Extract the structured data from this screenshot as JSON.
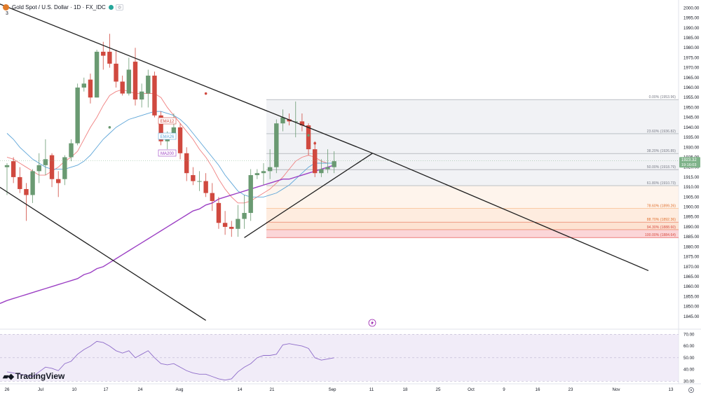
{
  "header": {
    "title": "Gold Spot / U.S. Dollar · 1D · FX_IDC",
    "row2": "3"
  },
  "brand": {
    "name": "TradingView"
  },
  "colors": {
    "up": "#6a9a72",
    "down": "#d0493f",
    "ema12": "#f08080",
    "ema26": "#5da5d8",
    "ma200": "#9c40c4",
    "rsi": "#8e6cc9",
    "trendline": "#1f1f1f",
    "price_tag": "#7fb38a"
  },
  "chart_data": [
    {
      "type": "candlestick",
      "title": "Gold Spot / U.S. Dollar · 1D · FX_IDC",
      "ylim": [
        1840,
        2004
      ],
      "y_ticks": [
        1845,
        1850,
        1855,
        1860,
        1865,
        1870,
        1875,
        1880,
        1885,
        1890,
        1895,
        1900,
        1905,
        1910,
        1915,
        1920,
        1925,
        1930,
        1935,
        1940,
        1945,
        1950,
        1955,
        1960,
        1965,
        1970,
        1975,
        1980,
        1985,
        1990,
        1995,
        2000
      ],
      "y_tick_labels": [
        "1845.00",
        "1850.00",
        "1855.00",
        "1860.00",
        "1865.00",
        "1870.00",
        "1875.00",
        "1880.00",
        "1885.00",
        "1890.00",
        "1895.00",
        "1900.00",
        "1905.00",
        "1910.00",
        "1915.00",
        "1920.00",
        "1925.00",
        "1930.00",
        "1935.00",
        "1940.00",
        "1945.00",
        "1950.00",
        "1955.00",
        "1960.00",
        "1965.00",
        "1970.00",
        "1975.00",
        "1980.00",
        "1985.00",
        "1990.00",
        "1995.00",
        "2000.00"
      ],
      "x_tick_labels": [
        "26",
        "Jul",
        "10",
        "17",
        "24",
        "Aug",
        "14",
        "21",
        "Sep",
        "11",
        "18",
        "25",
        "Oct",
        "9",
        "16",
        "23",
        "Nov",
        "13"
      ],
      "candles": [
        {
          "o": 1920,
          "h": 1922,
          "l": 1906,
          "c": 1921
        },
        {
          "o": 1923,
          "h": 1925,
          "l": 1912,
          "c": 1915
        },
        {
          "o": 1915,
          "h": 1920,
          "l": 1907,
          "c": 1909
        },
        {
          "o": 1909,
          "h": 1912,
          "l": 1893,
          "c": 1906
        },
        {
          "o": 1906,
          "h": 1919,
          "l": 1902,
          "c": 1918
        },
        {
          "o": 1918,
          "h": 1927,
          "l": 1912,
          "c": 1921
        },
        {
          "o": 1921,
          "h": 1934,
          "l": 1916,
          "c": 1924
        },
        {
          "o": 1926,
          "h": 1927,
          "l": 1910,
          "c": 1914
        },
        {
          "o": 1914,
          "h": 1918,
          "l": 1905,
          "c": 1912
        },
        {
          "o": 1914,
          "h": 1926,
          "l": 1911,
          "c": 1925
        },
        {
          "o": 1925,
          "h": 1934,
          "l": 1923,
          "c": 1932
        },
        {
          "o": 1932,
          "h": 1962,
          "l": 1931,
          "c": 1960
        },
        {
          "o": 1960,
          "h": 1965,
          "l": 1958,
          "c": 1962
        },
        {
          "o": 1964,
          "h": 1967,
          "l": 1952,
          "c": 1955
        },
        {
          "o": 1955,
          "h": 1979,
          "l": 1955,
          "c": 1978
        },
        {
          "o": 1978,
          "h": 1983,
          "l": 1969,
          "c": 1976
        },
        {
          "o": 1978,
          "h": 1987,
          "l": 1970,
          "c": 1972
        },
        {
          "o": 1972,
          "h": 1979,
          "l": 1960,
          "c": 1963
        },
        {
          "o": 1963,
          "h": 1966,
          "l": 1956,
          "c": 1957
        },
        {
          "o": 1957,
          "h": 1975,
          "l": 1956,
          "c": 1969
        },
        {
          "o": 1973,
          "h": 1980,
          "l": 1951,
          "c": 1954
        },
        {
          "o": 1954,
          "h": 1962,
          "l": 1950,
          "c": 1958
        },
        {
          "o": 1957,
          "h": 1969,
          "l": 1950,
          "c": 1966
        },
        {
          "o": 1966,
          "h": 1968,
          "l": 1945,
          "c": 1946
        },
        {
          "o": 1946,
          "h": 1948,
          "l": 1931,
          "c": 1933
        },
        {
          "o": 1933,
          "h": 1938,
          "l": 1929,
          "c": 1935
        },
        {
          "o": 1936,
          "h": 1947,
          "l": 1934,
          "c": 1940
        },
        {
          "o": 1940,
          "h": 1942,
          "l": 1924,
          "c": 1927
        },
        {
          "o": 1927,
          "h": 1930,
          "l": 1913,
          "c": 1917
        },
        {
          "o": 1916,
          "h": 1920,
          "l": 1911,
          "c": 1913
        },
        {
          "o": 1913,
          "h": 1918,
          "l": 1908,
          "c": 1913
        },
        {
          "o": 1913,
          "h": 1917,
          "l": 1905,
          "c": 1907
        },
        {
          "o": 1907,
          "h": 1912,
          "l": 1898,
          "c": 1903
        },
        {
          "o": 1902,
          "h": 1905,
          "l": 1889,
          "c": 1892
        },
        {
          "o": 1892,
          "h": 1898,
          "l": 1886,
          "c": 1890
        },
        {
          "o": 1890,
          "h": 1893,
          "l": 1885,
          "c": 1889
        },
        {
          "o": 1889,
          "h": 1901,
          "l": 1885,
          "c": 1894
        },
        {
          "o": 1894,
          "h": 1906,
          "l": 1889,
          "c": 1897
        },
        {
          "o": 1897,
          "h": 1919,
          "l": 1893,
          "c": 1916
        },
        {
          "o": 1916,
          "h": 1919,
          "l": 1914,
          "c": 1917
        },
        {
          "o": 1917,
          "h": 1922,
          "l": 1911,
          "c": 1918
        },
        {
          "o": 1918,
          "h": 1929,
          "l": 1914,
          "c": 1920
        },
        {
          "o": 1920,
          "h": 1944,
          "l": 1917,
          "c": 1942
        },
        {
          "o": 1942,
          "h": 1949,
          "l": 1938,
          "c": 1945
        },
        {
          "o": 1944,
          "h": 1947,
          "l": 1941,
          "c": 1943
        },
        {
          "o": 1943,
          "h": 1953,
          "l": 1935,
          "c": 1943
        },
        {
          "o": 1943,
          "h": 1947,
          "l": 1938,
          "c": 1941
        },
        {
          "o": 1941,
          "h": 1942,
          "l": 1926,
          "c": 1929
        },
        {
          "o": 1929,
          "h": 1933,
          "l": 1915,
          "c": 1917
        },
        {
          "o": 1917,
          "h": 1924,
          "l": 1915,
          "c": 1919
        },
        {
          "o": 1919,
          "h": 1929,
          "l": 1917,
          "c": 1920
        },
        {
          "o": 1920,
          "h": 1928,
          "l": 1917,
          "c": 1923
        }
      ],
      "series": [
        {
          "name": "EMA12",
          "values": [
            1925,
            1924,
            1922,
            1920,
            1918,
            1916,
            1916,
            1918,
            1920,
            1923,
            1925,
            1928,
            1934,
            1940,
            1945,
            1951,
            1956,
            1958,
            1959,
            1958,
            1957,
            1957,
            1957,
            1957,
            1955,
            1950,
            1946,
            1942,
            1938,
            1934,
            1929,
            1925,
            1920,
            1914,
            1909,
            1905,
            1902,
            1902,
            1903,
            1905,
            1907,
            1909,
            1912,
            1915,
            1919,
            1923,
            1925,
            1926,
            1925,
            1923,
            1922,
            1922
          ]
        },
        {
          "name": "EMA26",
          "values": [
            1937,
            1934,
            1930,
            1927,
            1924,
            1922,
            1920,
            1919,
            1919,
            1919,
            1920,
            1921,
            1923,
            1926,
            1930,
            1934,
            1937,
            1940,
            1942,
            1944,
            1945,
            1946,
            1947,
            1948,
            1948,
            1947,
            1946,
            1944,
            1941,
            1937,
            1933,
            1929,
            1925,
            1921,
            1916,
            1912,
            1908,
            1906,
            1905,
            1905,
            1905,
            1906,
            1907,
            1909,
            1911,
            1914,
            1917,
            1920,
            1922,
            1922,
            1922,
            1922
          ]
        },
        {
          "name": "MA200",
          "values": [
            1853,
            1854,
            1855,
            1856,
            1857,
            1858,
            1859,
            1860,
            1861,
            1862,
            1863,
            1864,
            1866,
            1867,
            1869,
            1870,
            1872,
            1874,
            1876,
            1878,
            1880,
            1882,
            1884,
            1886,
            1888,
            1890,
            1892,
            1894,
            1896,
            1898,
            1899,
            1901,
            1902,
            1904,
            1905,
            1906,
            1907,
            1908,
            1909,
            1910,
            1911,
            1912,
            1913,
            1914,
            1914,
            1915,
            1916,
            1917,
            1918,
            1919,
            1920,
            1921
          ]
        }
      ],
      "series_labels": [
        "EMA12",
        "EMA26",
        "MA200"
      ],
      "fibonacci": [
        {
          "level": 1953.96,
          "label": "0.00% (1953.96)"
        },
        {
          "level": 1936.82,
          "label": "23.60% (1936.82)"
        },
        {
          "level": 1926.85,
          "label": "38.20% (1926.85)"
        },
        {
          "level": 1918.79,
          "label": "50.00% (1918.79)"
        },
        {
          "level": 1910.73,
          "label": "61.80% (1910.73)"
        },
        {
          "level": 1899.26,
          "label": "78.60% (1899.26)"
        },
        {
          "level": 1892.36,
          "label": "88.70% (1892.36)"
        },
        {
          "level": 1888.6,
          "label": "94.30% (1888.60)"
        },
        {
          "level": 1884.64,
          "label": "100.00% (1884.64)"
        }
      ],
      "price_tag": {
        "price": "1923.32",
        "sub": "19:16:03"
      },
      "trendlines": [
        {
          "name": "upper-channel-line",
          "from": [
            -5,
            2007
          ],
          "to": [
            57,
            1927
          ]
        },
        {
          "name": "upper-channel-extension",
          "from": [
            57,
            1927
          ],
          "to": [
            100,
            1868
          ]
        },
        {
          "name": "lower-channel-line",
          "from": [
            -5,
            1918
          ],
          "to": [
            31,
            1843
          ]
        },
        {
          "name": "rising-support-line",
          "from": [
            37,
            1884.6
          ],
          "to": [
            57,
            1927
          ]
        }
      ]
    },
    {
      "type": "line",
      "name": "RSI",
      "ylim": [
        29,
        72
      ],
      "y_ticks": [
        30,
        40,
        50,
        60,
        70
      ],
      "y_tick_labels": [
        "30.00",
        "40.00",
        "50.00",
        "60.00",
        "70.00"
      ],
      "band": [
        30,
        70
      ],
      "values": [
        38,
        37,
        36,
        35,
        34,
        38,
        42,
        41,
        39,
        45,
        47,
        53,
        57,
        60,
        64,
        63,
        60,
        56,
        54,
        56,
        50,
        53,
        56,
        50,
        45,
        44,
        45,
        42,
        39,
        37,
        36,
        36,
        34,
        32,
        31,
        32,
        38,
        42,
        45,
        50,
        52,
        52,
        53,
        61,
        62,
        61,
        60,
        58,
        50,
        48,
        49,
        50
      ]
    }
  ],
  "ui": {
    "lightning_icon": "lightning-icon",
    "settings_icon": "gear-icon"
  }
}
